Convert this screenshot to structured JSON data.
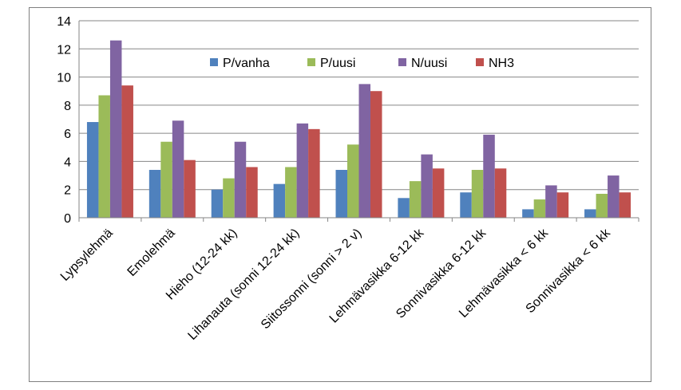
{
  "chart_data": {
    "type": "bar",
    "categories": [
      "Lypsylehmä",
      "Emolehmä",
      "Hieho (12-24 kk)",
      "Lihanauta (sonni 12-24 kk)",
      "Siitossonni (sonni > 2 v)",
      "Lehmävasikka 6-12 kk",
      "Sonnivasikka 6-12 kk",
      "Lehmävasikka < 6 kk",
      "Sonnivasikka < 6 kk"
    ],
    "series": [
      {
        "name": "P/vanha",
        "color": "#4f81bd",
        "values": [
          6.8,
          3.4,
          2.0,
          2.4,
          3.4,
          1.4,
          1.8,
          0.6,
          0.6
        ]
      },
      {
        "name": "P/uusi",
        "color": "#9bbb59",
        "values": [
          8.7,
          5.4,
          2.8,
          3.6,
          5.2,
          2.6,
          3.4,
          1.3,
          1.7
        ]
      },
      {
        "name": "N/uusi",
        "color": "#8064a2",
        "values": [
          12.6,
          6.9,
          5.4,
          6.7,
          9.5,
          4.5,
          5.9,
          2.3,
          3.0
        ]
      },
      {
        "name": "NH3",
        "color": "#c0504d",
        "values": [
          9.4,
          4.1,
          3.6,
          6.3,
          9.0,
          3.5,
          3.5,
          1.8,
          1.8
        ]
      }
    ],
    "yticks": [
      "0",
      "2",
      "4",
      "6",
      "8",
      "10",
      "12",
      "14"
    ],
    "ylim": [
      0,
      14
    ],
    "grid": true,
    "legend_position": "top-center",
    "title": "",
    "xlabel": "",
    "ylabel": ""
  }
}
